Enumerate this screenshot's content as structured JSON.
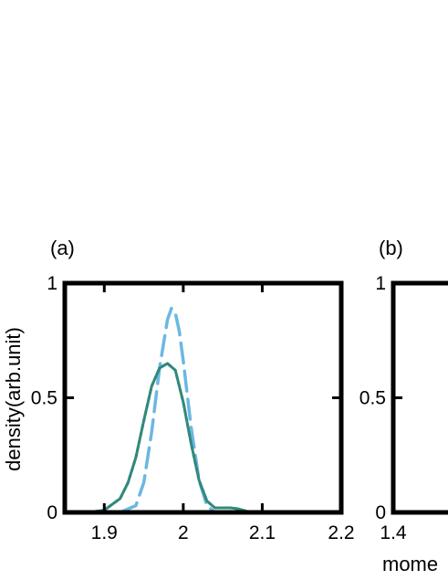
{
  "chart_data": [
    {
      "panel_label": "(a)",
      "type": "line",
      "ylabel": "density(arb.unit)",
      "xlabel": "",
      "xlim": [
        1.85,
        2.2
      ],
      "ylim": [
        0,
        1
      ],
      "x_ticks": [
        "1.9",
        "2",
        "2.1",
        "2.2"
      ],
      "x_tick_values": [
        1.9,
        2.0,
        2.1,
        2.2
      ],
      "y_ticks": [
        "0",
        "0.5",
        "1"
      ],
      "y_tick_values": [
        0,
        0.5,
        1
      ],
      "grid": false,
      "series": [
        {
          "color": "#6ab8e2",
          "style": "dashed",
          "x": [
            1.92,
            1.94,
            1.95,
            1.96,
            1.97,
            1.98,
            1.985,
            1.99,
            1.995,
            2.0,
            2.01,
            2.02,
            2.03,
            2.04
          ],
          "y": [
            0.0,
            0.03,
            0.13,
            0.35,
            0.63,
            0.84,
            0.89,
            0.87,
            0.79,
            0.66,
            0.37,
            0.14,
            0.03,
            0.0
          ]
        },
        {
          "color": "#b833c7",
          "style": "dotted",
          "x": [
            1.88,
            1.9,
            1.92,
            1.93,
            1.94,
            1.95,
            1.96,
            1.97,
            1.98,
            1.99,
            2.0,
            2.01,
            2.02,
            2.03,
            2.04,
            2.05,
            2.06,
            2.07,
            2.08,
            2.09
          ],
          "y": [
            0.0,
            0.01,
            0.06,
            0.13,
            0.24,
            0.4,
            0.55,
            0.63,
            0.65,
            0.62,
            0.48,
            0.3,
            0.14,
            0.05,
            0.02,
            0.02,
            0.02,
            0.015,
            0.005,
            0.0
          ]
        },
        {
          "color": "#2e8b7a",
          "style": "solid",
          "x": [
            1.88,
            1.9,
            1.92,
            1.93,
            1.94,
            1.95,
            1.96,
            1.97,
            1.98,
            1.99,
            2.0,
            2.01,
            2.02,
            2.03,
            2.04,
            2.05,
            2.06,
            2.07,
            2.08,
            2.09
          ],
          "y": [
            0.0,
            0.01,
            0.06,
            0.13,
            0.24,
            0.4,
            0.55,
            0.63,
            0.65,
            0.62,
            0.48,
            0.3,
            0.14,
            0.05,
            0.02,
            0.02,
            0.02,
            0.015,
            0.005,
            0.0
          ]
        }
      ]
    },
    {
      "panel_label": "(b)",
      "type": "line",
      "ylabel": "",
      "xlabel": "mome",
      "xlim": [
        1.4,
        2.2
      ],
      "ylim": [
        0,
        1
      ],
      "x_ticks": [
        "1.4"
      ],
      "x_tick_values": [
        1.4
      ],
      "y_ticks": [
        "0",
        "0.5",
        "1"
      ],
      "y_tick_values": [
        0,
        0.5,
        1
      ],
      "grid": false,
      "series": []
    }
  ]
}
